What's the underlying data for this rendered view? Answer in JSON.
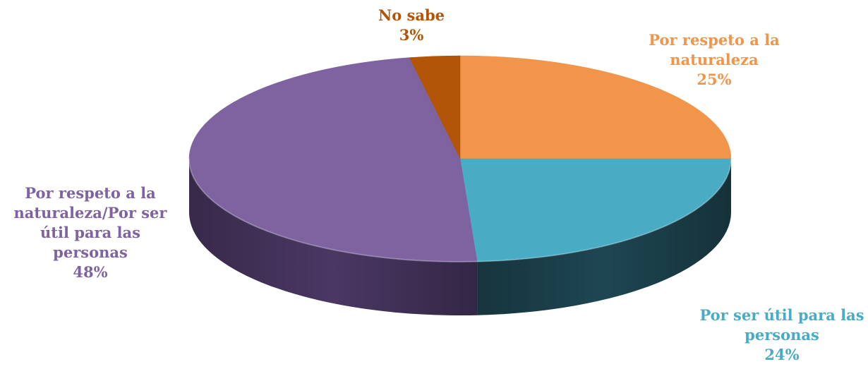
{
  "chart_data": {
    "type": "pie",
    "title": "",
    "slices": [
      {
        "label_lines": [
          "Por respeto a la",
          "naturaleza"
        ],
        "value": 25,
        "pct": "25%",
        "color": "#f0954a",
        "dark": "#a8622e",
        "label_color": "#f0954a"
      },
      {
        "label_lines": [
          "Por ser útil para las",
          "personas"
        ],
        "value": 24,
        "pct": "24%",
        "color": "#4aabc4",
        "dark": "#1e4652",
        "label_color": "#4aabc4"
      },
      {
        "label_lines": [
          "Por respeto a la",
          "naturaleza/Por ser",
          "útil para las",
          "personas"
        ],
        "value": 48,
        "pct": "48%",
        "color": "#7e63a0",
        "dark": "#4a3763",
        "label_color": "#7e63a0"
      },
      {
        "label_lines": [
          "No sabe"
        ],
        "value": 3,
        "pct": "3%",
        "color": "#b25509",
        "dark": "#7a3a05",
        "label_color": "#b25509"
      }
    ]
  }
}
